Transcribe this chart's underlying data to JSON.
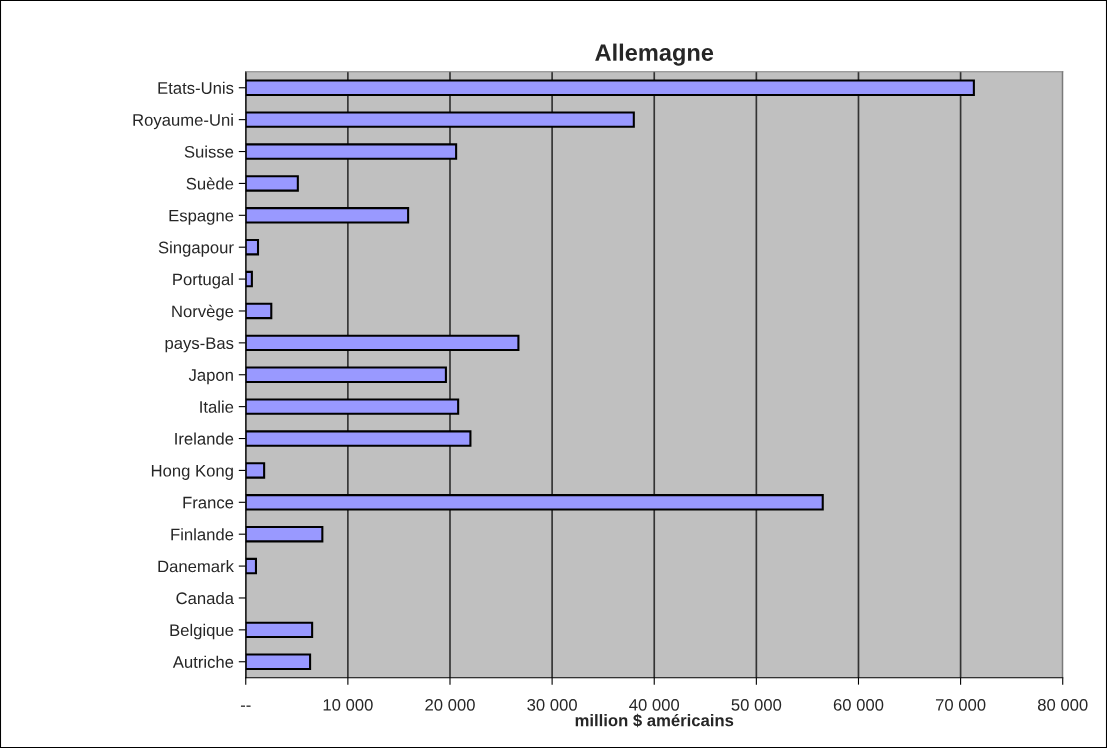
{
  "chart_data": {
    "type": "bar",
    "orientation": "horizontal",
    "title": "Allemagne",
    "xlabel": "million $ américains",
    "categories": [
      "Etats-Unis",
      "Royaume-Uni",
      "Suisse",
      "Suède",
      "Espagne",
      "Singapour",
      "Portugal",
      "Norvège",
      "pays-Bas",
      "Japon",
      "Italie",
      "Irelande",
      "Hong Kong",
      "France",
      "Finlande",
      "Danemark",
      "Canada",
      "Belgique",
      "Autriche"
    ],
    "values": [
      71300,
      38000,
      20600,
      5100,
      15900,
      1200,
      600,
      2500,
      26700,
      19600,
      20800,
      22000,
      1800,
      56500,
      7500,
      1000,
      null,
      6500,
      6300
    ],
    "color": "#9999ff",
    "xlim": [
      0,
      80000
    ],
    "xticks": [
      {
        "value": 0,
        "label": "--"
      },
      {
        "value": 10000,
        "label": "10 000"
      },
      {
        "value": 20000,
        "label": "20 000"
      },
      {
        "value": 30000,
        "label": "30 000"
      },
      {
        "value": 40000,
        "label": "40 000"
      },
      {
        "value": 50000,
        "label": "50 000"
      },
      {
        "value": 60000,
        "label": "60 000"
      },
      {
        "value": 70000,
        "label": "70 000"
      },
      {
        "value": 80000,
        "label": "80 000"
      }
    ],
    "grid": "x",
    "legend": false
  }
}
